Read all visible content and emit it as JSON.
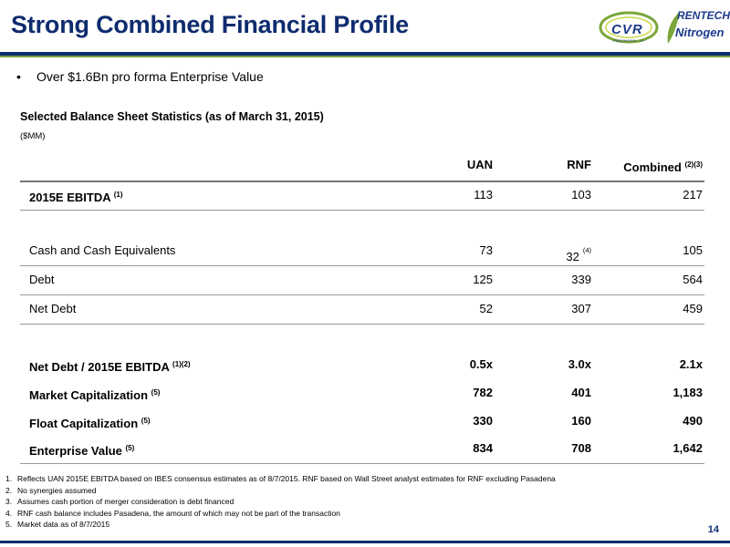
{
  "header": {
    "title": "Strong Combined Financial Profile",
    "logos": {
      "left_text": "CVR",
      "left_subtext": "PARTNERS, LP",
      "right_top": "RENTECH",
      "right_bottom": "Nitrogen"
    }
  },
  "bullet": {
    "marker": "•",
    "text": "Over $1.6Bn pro forma Enterprise Value"
  },
  "table": {
    "title": "Selected Balance Sheet Statistics (as of March 31, 2015)",
    "units": "($MM)",
    "columns": {
      "uan": "UAN",
      "rnf": "RNF",
      "combined": "Combined",
      "combined_sup": "(2)(3)"
    },
    "rows": [
      {
        "label": "2015E EBITDA",
        "sup": "(1)",
        "uan": "113",
        "rnf": "103",
        "combined": "217"
      },
      {
        "label": "Cash and Cash Equivalents",
        "sup": "",
        "uan": "73",
        "rnf": "32",
        "rnf_sup": "(4)",
        "combined": "105"
      },
      {
        "label": "Debt",
        "sup": "",
        "uan": "125",
        "rnf": "339",
        "combined": "564"
      },
      {
        "label": "Net Debt",
        "sup": "",
        "uan": "52",
        "rnf": "307",
        "combined": "459"
      },
      {
        "label": "Net Debt / 2015E EBITDA",
        "sup": "(1)(2)",
        "uan": "0.5x",
        "rnf": "3.0x",
        "combined": "2.1x"
      },
      {
        "label": "Market Capitalization",
        "sup": "(5)",
        "uan": "782",
        "rnf": "401",
        "combined": "1,183"
      },
      {
        "label": "Float Capitalization",
        "sup": "(5)",
        "uan": "330",
        "rnf": "160",
        "combined": "490"
      },
      {
        "label": "Enterprise Value",
        "sup": "(5)",
        "uan": "834",
        "rnf": "708",
        "combined": "1,642"
      }
    ]
  },
  "footnotes": [
    {
      "num": "1.",
      "text": "Reflects UAN 2015E EBITDA based on IBES consensus estimates as of 8/7/2015. RNF based on Wall Street analyst estimates for RNF excluding Pasadena"
    },
    {
      "num": "2.",
      "text": "No synergies assumed"
    },
    {
      "num": "3.",
      "text": "Assumes cash portion of merger consideration is debt financed"
    },
    {
      "num": "4.",
      "text": "RNF cash balance includes Pasadena, the amount of which may not be part of the transaction"
    },
    {
      "num": "5.",
      "text": "Market data as of 8/7/2015"
    }
  ],
  "page_number": "14",
  "colors": {
    "brand_navy": "#0e2c6e",
    "brand_green": "#7aa63a",
    "rule_gray": "#9a9a9a"
  }
}
